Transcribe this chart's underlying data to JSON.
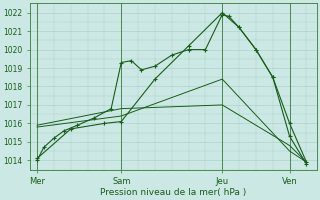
{
  "xlabel": "Pression niveau de la mer( hPa )",
  "bg_color": "#cce8e4",
  "grid_color": "#a8ccc8",
  "line_color": "#1a5c1a",
  "ylim": [
    1013.5,
    1022.5
  ],
  "yticks": [
    1014,
    1015,
    1016,
    1017,
    1018,
    1019,
    1020,
    1021,
    1022
  ],
  "day_labels": [
    "Mer",
    "Sam",
    "Jeu",
    "Ven"
  ],
  "day_positions": [
    0,
    2.5,
    5.5,
    7.5
  ],
  "xlim": [
    -0.2,
    8.3
  ],
  "series": [
    {
      "x": [
        0.0,
        0.2,
        0.5,
        0.8,
        1.2,
        1.7,
        2.2,
        2.5,
        2.8,
        3.1,
        3.5,
        4.0,
        4.5,
        5.0,
        5.5,
        5.7,
        6.0,
        6.5,
        7.0,
        7.5,
        8.0
      ],
      "y": [
        1014.0,
        1014.7,
        1015.2,
        1015.6,
        1015.9,
        1016.3,
        1016.8,
        1019.3,
        1019.4,
        1018.9,
        1019.1,
        1019.7,
        1020.0,
        1020.0,
        1021.9,
        1021.8,
        1021.2,
        1020.0,
        1018.5,
        1016.0,
        1013.9
      ],
      "marker": "+"
    },
    {
      "x": [
        0.0,
        1.0,
        2.0,
        2.5,
        3.5,
        4.5,
        5.5,
        6.0,
        6.5,
        7.0,
        7.5,
        8.0
      ],
      "y": [
        1014.1,
        1015.7,
        1016.0,
        1016.1,
        1018.4,
        1020.2,
        1022.0,
        1021.2,
        1020.0,
        1018.5,
        1015.3,
        1013.8
      ],
      "marker": "+"
    },
    {
      "x": [
        0.0,
        2.5,
        5.5,
        7.5,
        8.0
      ],
      "y": [
        1015.8,
        1016.4,
        1018.4,
        1014.5,
        1013.9
      ],
      "marker": null
    },
    {
      "x": [
        0.0,
        2.5,
        5.5,
        7.5,
        8.0
      ],
      "y": [
        1015.9,
        1016.8,
        1017.0,
        1014.8,
        1013.9
      ],
      "marker": null
    }
  ]
}
